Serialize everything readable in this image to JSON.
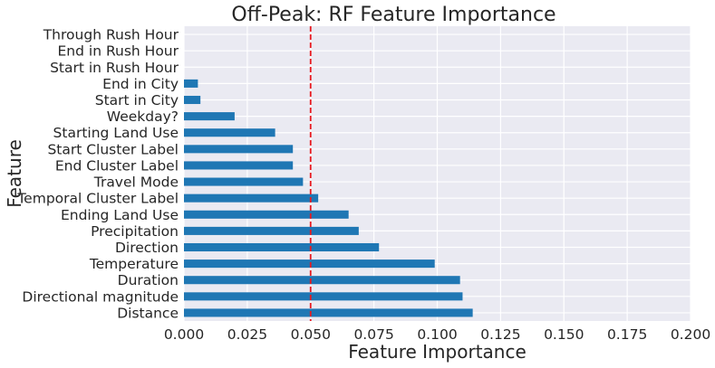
{
  "chart_data": {
    "type": "bar",
    "orientation": "horizontal",
    "title": "Off-Peak: RF Feature Importance",
    "xlabel": "Feature Importance",
    "ylabel": "Feature",
    "xlim": [
      0,
      0.2
    ],
    "xticks": [
      "0.000",
      "0.025",
      "0.050",
      "0.075",
      "0.100",
      "0.125",
      "0.150",
      "0.175",
      "0.200"
    ],
    "categories": [
      "Distance",
      "Directional magnitude",
      "Duration",
      "Temperature",
      "Direction",
      "Precipitation",
      "Ending Land Use",
      "Temporal Cluster Label",
      "Travel Mode",
      "End Cluster Label",
      "Start Cluster Label",
      "Starting Land Use",
      "Weekday?",
      "Start in City",
      "End in City",
      "Start in Rush Hour",
      "End in Rush Hour",
      "Through Rush Hour"
    ],
    "values": [
      0.114,
      0.11,
      0.109,
      0.099,
      0.077,
      0.069,
      0.065,
      0.053,
      0.047,
      0.043,
      0.043,
      0.036,
      0.02,
      0.0065,
      0.0055,
      0.0,
      0.0,
      0.0
    ],
    "reference_line": {
      "x": 0.05,
      "style": "dashed",
      "color": "#e8191f"
    },
    "bar_color": "#1f77b4",
    "background_color": "#eaeaf2",
    "grid": true
  }
}
